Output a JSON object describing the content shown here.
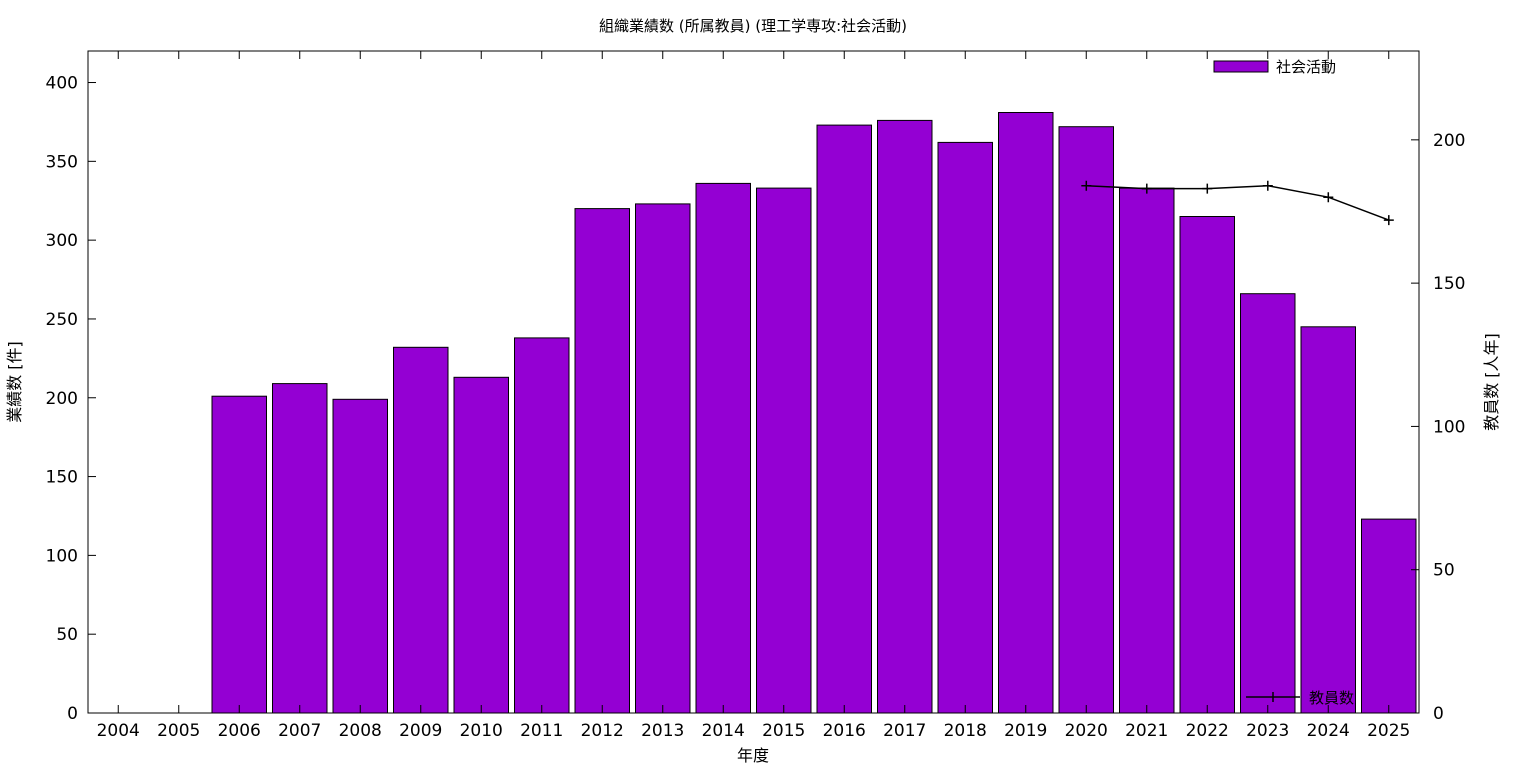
{
  "chart_data": {
    "type": "bar",
    "title": "組織業績数 (所属教員) (理工学専攻:社会活動)",
    "xlabel": "年度",
    "ylabel": "業績数 [件]",
    "y2label": "教員数 [人年]",
    "categories": [
      "2004",
      "2005",
      "2006",
      "2007",
      "2008",
      "2009",
      "2010",
      "2011",
      "2012",
      "2013",
      "2014",
      "2015",
      "2016",
      "2017",
      "2018",
      "2019",
      "2020",
      "2021",
      "2022",
      "2023",
      "2024",
      "2025"
    ],
    "ylim": [
      0,
      420
    ],
    "y2lim": [
      0,
      231
    ],
    "yticks": [
      0,
      50,
      100,
      150,
      200,
      250,
      300,
      350,
      400
    ],
    "y2ticks": [
      0,
      50,
      100,
      150,
      200
    ],
    "grid": false,
    "series": [
      {
        "name": "社会活動",
        "type": "bar",
        "axis": "y",
        "color": "#9400d3",
        "values": [
          null,
          null,
          201,
          209,
          199,
          232,
          213,
          238,
          320,
          323,
          336,
          333,
          373,
          376,
          362,
          381,
          372,
          333,
          315,
          266,
          245,
          123
        ]
      },
      {
        "name": "教員数",
        "type": "line",
        "axis": "y2",
        "color": "#000000",
        "marker": "plus",
        "values": [
          null,
          null,
          null,
          null,
          null,
          null,
          null,
          null,
          null,
          null,
          null,
          null,
          null,
          null,
          null,
          null,
          184,
          183,
          183,
          184,
          180,
          172
        ]
      }
    ],
    "legend": [
      {
        "label": "社会活動",
        "position": "top-right"
      },
      {
        "label": "教員数",
        "position": "bottom-right"
      }
    ]
  }
}
